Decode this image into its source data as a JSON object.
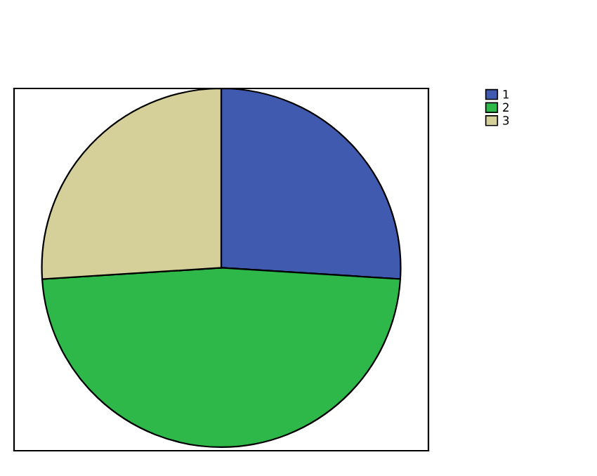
{
  "chart_data": {
    "type": "pie",
    "categories": [
      "1",
      "2",
      "3"
    ],
    "values": [
      26,
      48,
      26
    ],
    "colors": [
      "#3f5aae",
      "#2eb84a",
      "#d5cf9a"
    ],
    "legend": "top right"
  }
}
